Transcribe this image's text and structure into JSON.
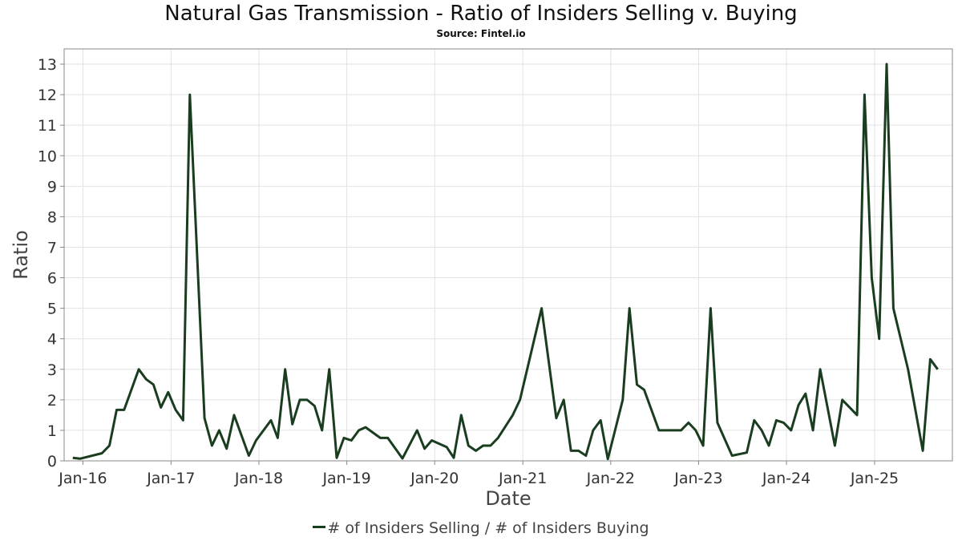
{
  "chart_data": {
    "type": "line",
    "title": "Natural Gas Transmission - Ratio of Insiders Selling v. Buying",
    "subtitle": "Source: Fintel.io",
    "xlabel": "Date",
    "ylabel": "Ratio",
    "ylim": [
      0,
      13.5
    ],
    "grid": true,
    "legend_position": "bottom-center",
    "line_color": "#1a3d1f",
    "yticks": [
      0,
      1,
      2,
      3,
      4,
      5,
      6,
      7,
      8,
      9,
      10,
      11,
      12,
      13
    ],
    "xticks": [
      {
        "label": "Jan-16",
        "date": "2016-01-01"
      },
      {
        "label": "Jan-17",
        "date": "2017-01-01"
      },
      {
        "label": "Jan-18",
        "date": "2018-01-01"
      },
      {
        "label": "Jan-19",
        "date": "2019-01-01"
      },
      {
        "label": "Jan-20",
        "date": "2020-01-01"
      },
      {
        "label": "Jan-21",
        "date": "2021-01-01"
      },
      {
        "label": "Jan-22",
        "date": "2022-01-01"
      },
      {
        "label": "Jan-23",
        "date": "2023-01-01"
      },
      {
        "label": "Jan-24",
        "date": "2024-01-01"
      },
      {
        "label": "Jan-25",
        "date": "2025-01-01"
      }
    ],
    "series": [
      {
        "name": "# of Insiders Selling / # of Insiders Buying",
        "points": [
          [
            "2015-11-20",
            0.1
          ],
          [
            "2015-12-20",
            0.07
          ],
          [
            "2016-03-20",
            0.25
          ],
          [
            "2016-04-20",
            0.5
          ],
          [
            "2016-05-20",
            1.67
          ],
          [
            "2016-06-20",
            1.67
          ],
          [
            "2016-08-20",
            3.0
          ],
          [
            "2016-09-20",
            2.67
          ],
          [
            "2016-10-20",
            2.5
          ],
          [
            "2016-11-20",
            1.75
          ],
          [
            "2016-12-20",
            2.25
          ],
          [
            "2017-01-20",
            1.67
          ],
          [
            "2017-02-20",
            1.33
          ],
          [
            "2017-03-20",
            12.0
          ],
          [
            "2017-05-20",
            1.4
          ],
          [
            "2017-06-20",
            0.5
          ],
          [
            "2017-07-20",
            1.0
          ],
          [
            "2017-08-20",
            0.4
          ],
          [
            "2017-09-20",
            1.5
          ],
          [
            "2017-11-20",
            0.17
          ],
          [
            "2017-12-20",
            0.67
          ],
          [
            "2018-02-20",
            1.33
          ],
          [
            "2018-03-20",
            0.75
          ],
          [
            "2018-04-20",
            3.0
          ],
          [
            "2018-05-20",
            1.2
          ],
          [
            "2018-06-20",
            2.0
          ],
          [
            "2018-07-20",
            2.0
          ],
          [
            "2018-08-20",
            1.8
          ],
          [
            "2018-09-20",
            1.0
          ],
          [
            "2018-10-20",
            3.0
          ],
          [
            "2018-11-20",
            0.1
          ],
          [
            "2018-12-20",
            0.75
          ],
          [
            "2019-01-20",
            0.67
          ],
          [
            "2019-02-20",
            1.0
          ],
          [
            "2019-03-20",
            1.1
          ],
          [
            "2019-05-20",
            0.75
          ],
          [
            "2019-06-20",
            0.75
          ],
          [
            "2019-08-20",
            0.08
          ],
          [
            "2019-10-20",
            1.0
          ],
          [
            "2019-11-20",
            0.4
          ],
          [
            "2019-12-20",
            0.67
          ],
          [
            "2020-02-20",
            0.45
          ],
          [
            "2020-03-20",
            0.1
          ],
          [
            "2020-04-20",
            1.5
          ],
          [
            "2020-05-20",
            0.5
          ],
          [
            "2020-06-20",
            0.33
          ],
          [
            "2020-07-20",
            0.5
          ],
          [
            "2020-08-20",
            0.5
          ],
          [
            "2020-09-20",
            0.75
          ],
          [
            "2020-11-20",
            1.5
          ],
          [
            "2020-12-20",
            2.0
          ],
          [
            "2021-03-20",
            5.0
          ],
          [
            "2021-05-20",
            1.4
          ],
          [
            "2021-06-20",
            2.0
          ],
          [
            "2021-07-20",
            0.33
          ],
          [
            "2021-08-20",
            0.33
          ],
          [
            "2021-09-20",
            0.17
          ],
          [
            "2021-10-20",
            1.0
          ],
          [
            "2021-11-20",
            1.33
          ],
          [
            "2021-12-20",
            0.06
          ],
          [
            "2022-02-20",
            2.0
          ],
          [
            "2022-03-20",
            5.0
          ],
          [
            "2022-04-20",
            2.5
          ],
          [
            "2022-05-20",
            2.33
          ],
          [
            "2022-07-20",
            1.0
          ],
          [
            "2022-08-20",
            1.0
          ],
          [
            "2022-09-20",
            1.0
          ],
          [
            "2022-10-20",
            1.0
          ],
          [
            "2022-11-20",
            1.25
          ],
          [
            "2022-12-20",
            1.0
          ],
          [
            "2023-01-20",
            0.5
          ],
          [
            "2023-02-20",
            5.0
          ],
          [
            "2023-03-20",
            1.25
          ],
          [
            "2023-05-20",
            0.17
          ],
          [
            "2023-07-20",
            0.27
          ],
          [
            "2023-08-20",
            1.33
          ],
          [
            "2023-09-20",
            1.0
          ],
          [
            "2023-10-20",
            0.5
          ],
          [
            "2023-11-20",
            1.33
          ],
          [
            "2023-12-20",
            1.25
          ],
          [
            "2024-01-20",
            1.0
          ],
          [
            "2024-02-20",
            1.83
          ],
          [
            "2024-03-20",
            2.2
          ],
          [
            "2024-04-20",
            1.0
          ],
          [
            "2024-05-20",
            3.0
          ],
          [
            "2024-07-20",
            0.5
          ],
          [
            "2024-08-20",
            2.0
          ],
          [
            "2024-10-20",
            1.5
          ],
          [
            "2024-11-20",
            12.0
          ],
          [
            "2024-12-20",
            6.0
          ],
          [
            "2025-01-20",
            4.0
          ],
          [
            "2025-02-20",
            13.0
          ],
          [
            "2025-03-20",
            5.0
          ],
          [
            "2025-05-20",
            3.0
          ],
          [
            "2025-07-20",
            0.33
          ],
          [
            "2025-08-20",
            3.33
          ],
          [
            "2025-09-20",
            3.0
          ]
        ]
      }
    ]
  }
}
